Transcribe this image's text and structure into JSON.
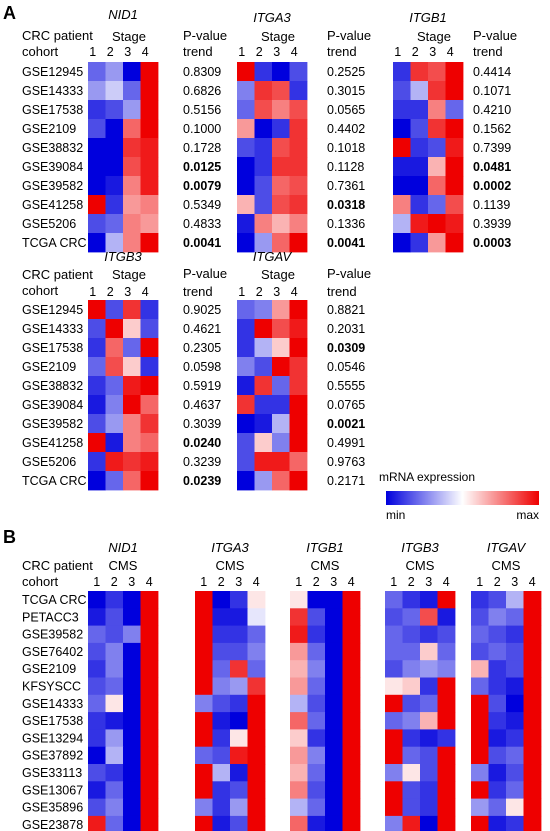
{
  "panel_a": {
    "letter": "A",
    "row_header_line1": "CRC patient",
    "row_header_line2": "cohort",
    "stage_label": "Stage",
    "stage_numbers": [
      "1",
      "2",
      "3",
      "4"
    ],
    "pvalue_line1": "P-value",
    "pvalue_line2": "trend",
    "rows": [
      "GSE12945",
      "GSE14333",
      "GSE17538",
      "GSE2109",
      "GSE38832",
      "GSE39084",
      "GSE39582",
      "GSE41258",
      "GSE5206",
      "TCGA CRC"
    ],
    "genes": [
      {
        "name": "NID1",
        "cells": [
          [
            -0.6,
            -0.4,
            -1,
            1
          ],
          [
            -0.4,
            -0.2,
            -0.6,
            1
          ],
          [
            -0.8,
            -0.7,
            -0.4,
            1
          ],
          [
            -0.7,
            -1,
            0.6,
            1
          ],
          [
            -1,
            -1,
            0.8,
            0.9
          ],
          [
            -1,
            -1,
            0.7,
            0.9
          ],
          [
            -1,
            -0.9,
            0.5,
            0.9
          ],
          [
            1,
            -0.8,
            0.4,
            0.5
          ],
          [
            -0.7,
            -0.6,
            0.5,
            0.4
          ],
          [
            -1,
            -0.3,
            0.5,
            1
          ]
        ],
        "pvalues": [
          "0.8309",
          "0.6826",
          "0.5156",
          "0.1000",
          "0.1728",
          "0.0125",
          "0.0079",
          "0.5349",
          "0.4833",
          "0.0041"
        ],
        "significant": [
          false,
          false,
          false,
          false,
          false,
          true,
          true,
          false,
          false,
          true
        ]
      },
      {
        "name": "ITGA3",
        "cells": [
          [
            1,
            -0.8,
            -1,
            -0.7
          ],
          [
            -0.5,
            0.8,
            0.7,
            -0.8
          ],
          [
            -0.6,
            0.7,
            0.5,
            0.7
          ],
          [
            0.4,
            -1,
            -0.8,
            0.8
          ],
          [
            -0.7,
            -0.8,
            0.7,
            0.8
          ],
          [
            -1,
            -0.8,
            0.8,
            0.8
          ],
          [
            -1,
            -0.7,
            0.6,
            0.7
          ],
          [
            0.3,
            -0.7,
            0.7,
            0.8
          ],
          [
            -0.9,
            0.5,
            0.3,
            0.5
          ],
          [
            -1,
            -0.4,
            0.6,
            1
          ]
        ],
        "pvalues": [
          "0.2525",
          "0.3015",
          "0.0565",
          "0.4402",
          "0.1018",
          "0.1128",
          "0.7361",
          "0.0318",
          "0.1336",
          "0.0041"
        ],
        "significant": [
          false,
          false,
          false,
          false,
          false,
          false,
          false,
          true,
          false,
          true
        ]
      },
      {
        "name": "ITGB1",
        "cells": [
          [
            -0.8,
            0.8,
            0.7,
            1
          ],
          [
            -0.7,
            -0.3,
            0.8,
            1
          ],
          [
            -0.8,
            -0.8,
            0.5,
            -0.6
          ],
          [
            -1,
            -0.7,
            0.8,
            1
          ],
          [
            1,
            -0.8,
            -0.7,
            0.9
          ],
          [
            -0.9,
            -0.9,
            0.3,
            1
          ],
          [
            -1,
            -1,
            0.6,
            1
          ],
          [
            0.5,
            -0.8,
            -0.6,
            0.7
          ],
          [
            -0.3,
            0.9,
            1,
            0.9
          ],
          [
            -1,
            -0.8,
            0.4,
            1
          ]
        ],
        "pvalues": [
          "0.4414",
          "0.1071",
          "0.4210",
          "0.1562",
          "0.7399",
          "0.0481",
          "0.0002",
          "0.1139",
          "0.3939",
          "0.0003"
        ],
        "significant": [
          false,
          false,
          false,
          false,
          false,
          true,
          true,
          false,
          false,
          true
        ]
      },
      {
        "name": "ITGB3",
        "cells": [
          [
            1,
            -0.7,
            0.8,
            -0.8
          ],
          [
            -0.7,
            1,
            0.2,
            -0.7
          ],
          [
            -0.8,
            0.6,
            -0.6,
            1
          ],
          [
            -0.6,
            0.7,
            0.2,
            -0.8
          ],
          [
            -0.8,
            -0.6,
            0.9,
            1
          ],
          [
            -0.9,
            -0.5,
            1,
            0.6
          ],
          [
            -0.7,
            -0.4,
            0.5,
            0.8
          ],
          [
            1,
            -0.9,
            0.5,
            0.6
          ],
          [
            -0.8,
            0.9,
            0.8,
            0.9
          ],
          [
            -1,
            -0.6,
            0.6,
            1
          ]
        ],
        "pvalues": [
          "0.9025",
          "0.4621",
          "0.2305",
          "0.0598",
          "0.5919",
          "0.4637",
          "0.3039",
          "0.0240",
          "0.3239",
          "0.0239"
        ],
        "significant": [
          false,
          false,
          false,
          false,
          false,
          false,
          false,
          true,
          false,
          true
        ]
      },
      {
        "name": "ITGAV",
        "cells": [
          [
            -0.6,
            -0.5,
            0.4,
            1
          ],
          [
            -0.8,
            1,
            0.7,
            0.9
          ],
          [
            -0.8,
            -0.3,
            0.2,
            1
          ],
          [
            -0.5,
            -0.7,
            1,
            0.8
          ],
          [
            -0.9,
            0.8,
            -0.6,
            0.8
          ],
          [
            0.8,
            -0.8,
            -0.8,
            1
          ],
          [
            -1,
            -0.9,
            -0.3,
            1
          ],
          [
            -0.7,
            0.2,
            -0.5,
            1
          ],
          [
            -0.7,
            0.9,
            0.9,
            0.6
          ],
          [
            -1,
            -0.4,
            0.6,
            1
          ]
        ],
        "pvalues": [
          "0.8821",
          "0.2031",
          "0.0309",
          "0.0546",
          "0.5555",
          "0.0765",
          "0.0021",
          "0.4991",
          "0.9763",
          "0.2171"
        ],
        "significant": [
          false,
          false,
          true,
          false,
          false,
          false,
          true,
          false,
          false,
          false
        ]
      }
    ]
  },
  "legend": {
    "title": "mRNA  expression",
    "min_label": "min",
    "max_label": "max"
  },
  "panel_b": {
    "letter": "B",
    "row_header_line1": "CRC patient",
    "row_header_line2": "cohort",
    "cms_label": "CMS",
    "cms_numbers": [
      "1",
      "2",
      "3",
      "4"
    ],
    "rows": [
      "TCGA CRC",
      "PETACC3",
      "GSE39582",
      "GSE76402",
      "GSE2109",
      "KFSYSCC",
      "GSE14333",
      "GSE17538",
      "GSE13294",
      "GSE37892",
      "GSE33113",
      "GSE13067",
      "GSE35896",
      "GSE23878"
    ],
    "genes": [
      {
        "name": "NID1",
        "cells": [
          [
            -1,
            -0.8,
            -1,
            1
          ],
          [
            -0.9,
            -0.7,
            -1,
            1
          ],
          [
            -0.6,
            -0.7,
            -0.5,
            1
          ],
          [
            -0.7,
            -0.5,
            -1,
            1
          ],
          [
            -0.8,
            -0.5,
            -1,
            1
          ],
          [
            -0.7,
            -0.6,
            -1,
            1
          ],
          [
            -0.6,
            0.1,
            -1,
            1
          ],
          [
            -0.8,
            -0.9,
            -1,
            1
          ],
          [
            -0.8,
            -0.4,
            -1,
            1
          ],
          [
            -1,
            -0.3,
            -1,
            1
          ],
          [
            -0.7,
            -0.8,
            -1,
            1
          ],
          [
            -0.9,
            -0.6,
            -1,
            1
          ],
          [
            -0.7,
            -0.5,
            -1,
            1
          ],
          [
            0.9,
            -0.6,
            -1,
            1
          ]
        ],
        "significant": []
      },
      {
        "name": "ITGA3",
        "cells": [
          [
            1,
            -1,
            -0.8,
            0.1
          ],
          [
            1,
            -0.9,
            -0.9,
            -0.1
          ],
          [
            1,
            -0.8,
            -0.8,
            -0.6
          ],
          [
            1,
            -0.7,
            -0.7,
            -0.5
          ],
          [
            1,
            -0.6,
            0.8,
            -0.6
          ],
          [
            1,
            -0.5,
            -0.4,
            0.8
          ],
          [
            -0.5,
            -0.7,
            -0.8,
            1
          ],
          [
            1,
            -0.9,
            -1,
            1
          ],
          [
            1,
            -0.8,
            0.1,
            1
          ],
          [
            -0.6,
            -0.7,
            0.9,
            1
          ],
          [
            1,
            -0.3,
            -0.9,
            1
          ],
          [
            1,
            -0.8,
            -0.7,
            1
          ],
          [
            -0.5,
            -0.8,
            -0.4,
            1
          ],
          [
            1,
            -0.9,
            -0.7,
            1
          ]
        ],
        "significant": []
      },
      {
        "name": "ITGB1",
        "cells": [
          [
            0.1,
            -1,
            -1,
            1
          ],
          [
            0.8,
            -0.7,
            -1,
            1
          ],
          [
            0.9,
            -0.8,
            -1,
            1
          ],
          [
            0.4,
            -0.6,
            -1,
            1
          ],
          [
            0.3,
            -0.5,
            -1,
            1
          ],
          [
            0.4,
            -0.6,
            -1,
            1
          ],
          [
            -0.3,
            -0.7,
            -1,
            1
          ],
          [
            0.6,
            -0.6,
            -1,
            1
          ],
          [
            0.2,
            -0.8,
            -1,
            1
          ],
          [
            0.4,
            -0.5,
            -1,
            1
          ],
          [
            0.3,
            -0.6,
            -1,
            1
          ],
          [
            0.5,
            -0.7,
            -1,
            1
          ],
          [
            -0.3,
            -0.6,
            -1,
            1
          ],
          [
            0.6,
            -0.9,
            -1,
            1
          ]
        ],
        "significant": []
      },
      {
        "name": "ITGB3",
        "cells": [
          [
            -0.6,
            -0.8,
            -0.9,
            1
          ],
          [
            -0.7,
            -0.6,
            0.7,
            -0.9
          ],
          [
            -0.6,
            -0.7,
            -0.8,
            -0.7
          ],
          [
            -0.6,
            -0.6,
            0.2,
            -0.6
          ],
          [
            -0.7,
            -0.5,
            -0.4,
            -0.5
          ],
          [
            0.1,
            0.2,
            -0.8,
            1
          ],
          [
            1,
            -0.7,
            -0.6,
            1
          ],
          [
            -0.6,
            -0.5,
            0.3,
            1
          ],
          [
            1,
            -0.8,
            -0.9,
            -0.8
          ],
          [
            1,
            -0.6,
            -0.7,
            1
          ],
          [
            -0.5,
            0.1,
            -0.7,
            1
          ],
          [
            1,
            -0.7,
            -0.8,
            1
          ],
          [
            1,
            -0.7,
            -0.8,
            1
          ],
          [
            -0.5,
            0.9,
            -1,
            1
          ]
        ],
        "significant": []
      },
      {
        "name": "ITGAV",
        "cells": [
          [
            -0.8,
            -0.7,
            -0.3,
            1
          ],
          [
            -0.7,
            -0.5,
            -0.6,
            1
          ],
          [
            -0.6,
            -0.7,
            -0.8,
            1
          ],
          [
            -0.7,
            -0.6,
            -0.7,
            1
          ],
          [
            0.3,
            -0.8,
            -0.7,
            1
          ],
          [
            -0.6,
            -0.8,
            -0.9,
            1
          ],
          [
            1,
            -0.7,
            -1,
            1
          ],
          [
            1,
            -0.8,
            -0.9,
            1
          ],
          [
            1,
            -0.9,
            -0.8,
            1
          ],
          [
            1,
            -0.7,
            -0.6,
            1
          ],
          [
            -0.5,
            -0.9,
            -0.7,
            1
          ],
          [
            1,
            -0.8,
            -0.6,
            1
          ],
          [
            -0.4,
            -0.6,
            0.1,
            1
          ],
          [
            1,
            -0.9,
            -0.8,
            1
          ]
        ],
        "significant": []
      }
    ]
  }
}
